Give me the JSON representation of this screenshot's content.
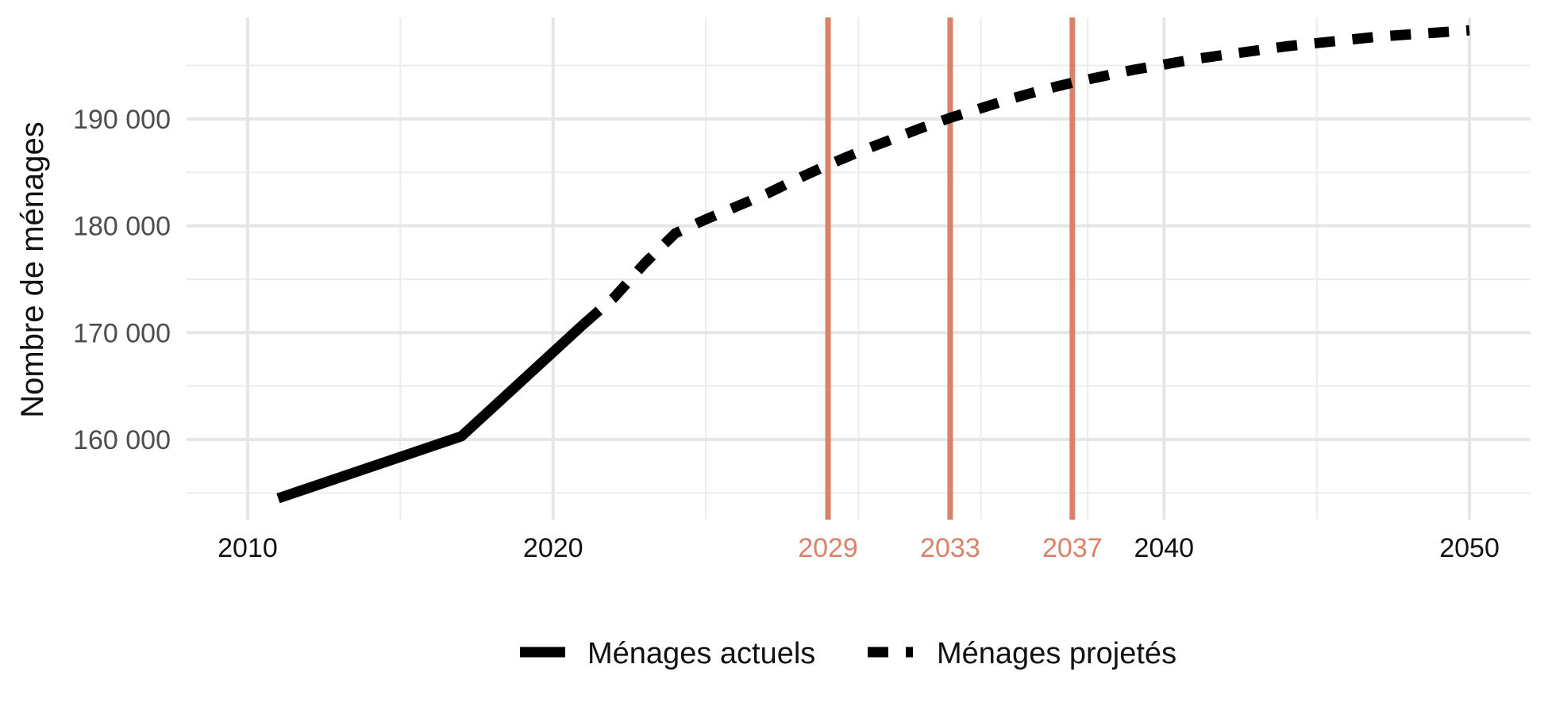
{
  "chart_data": {
    "type": "line",
    "title": "",
    "xlabel": "",
    "ylabel": "Nombre de ménages",
    "xlim": [
      2008,
      2052
    ],
    "ylim": [
      152500,
      199500
    ],
    "x_ticks": [
      2010,
      2020,
      2040,
      2050
    ],
    "x_tick_labels": [
      "2010",
      "2020",
      "2040",
      "2050"
    ],
    "x_minor_ticks": [
      2015,
      2025,
      2030,
      2034,
      2037.5,
      2045
    ],
    "y_ticks": [
      160000,
      170000,
      180000,
      190000
    ],
    "y_tick_labels": [
      "160 000",
      "170 000",
      "180 000",
      "190 000"
    ],
    "y_minor_ticks": [
      155000,
      165000,
      175000,
      185000,
      195000
    ],
    "grid": true,
    "legend_position": "bottom",
    "series": [
      {
        "name": "Ménages actuels",
        "style": "solid",
        "color": "#000000",
        "x": [
          2011,
          2017,
          2021
        ],
        "y": [
          154500,
          160300,
          170800
        ]
      },
      {
        "name": "Ménages projetés",
        "style": "dashed",
        "color": "#000000",
        "x": [
          2021,
          2022,
          2023,
          2024,
          2025,
          2026,
          2027,
          2028,
          2029,
          2030,
          2031,
          2032,
          2033,
          2034,
          2035,
          2036,
          2037,
          2038,
          2039,
          2040,
          2041,
          2042,
          2043,
          2044,
          2045,
          2046,
          2047,
          2048,
          2049,
          2050
        ],
        "y": [
          170800,
          173300,
          176500,
          179300,
          180600,
          181800,
          183000,
          184400,
          185700,
          186900,
          188000,
          189100,
          190100,
          191000,
          191900,
          192700,
          193400,
          194000,
          194600,
          195100,
          195600,
          196000,
          196400,
          196800,
          197100,
          197400,
          197700,
          197900,
          198100,
          198300
        ]
      }
    ],
    "vertical_lines": {
      "color": "#d9826a",
      "x": [
        2029,
        2033,
        2037
      ],
      "labels": [
        "2029",
        "2033",
        "2037"
      ]
    }
  }
}
